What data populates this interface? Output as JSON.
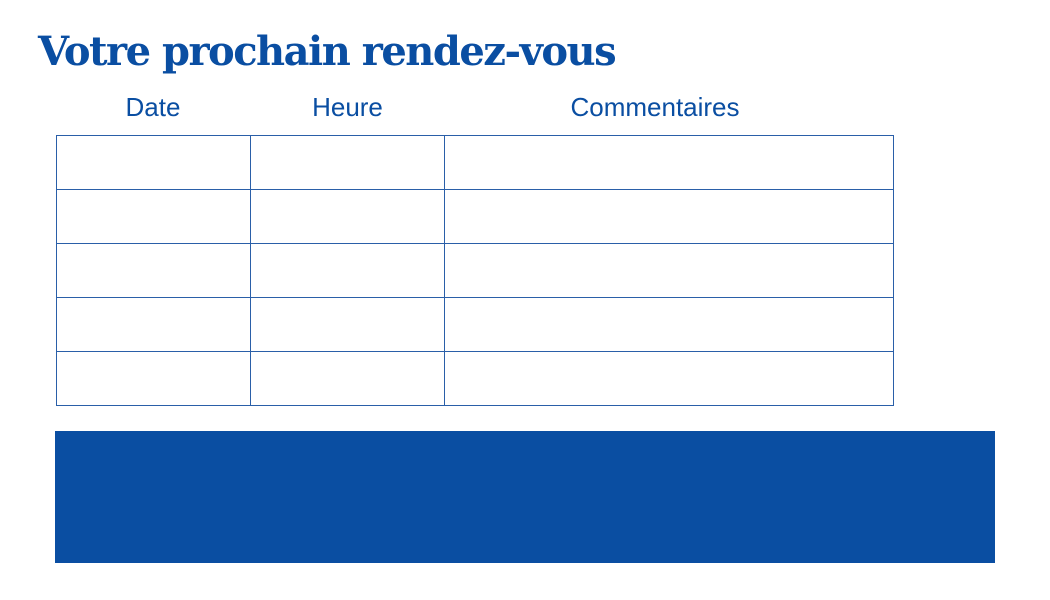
{
  "title": "Votre prochain rendez-vous",
  "table": {
    "headers": [
      "Date",
      "Heure",
      "Commentaires"
    ],
    "rows": [
      [
        "",
        "",
        ""
      ],
      [
        "",
        "",
        ""
      ],
      [
        "",
        "",
        ""
      ],
      [
        "",
        "",
        ""
      ],
      [
        "",
        "",
        ""
      ]
    ]
  },
  "colors": {
    "brand": "#0a4ea2"
  }
}
